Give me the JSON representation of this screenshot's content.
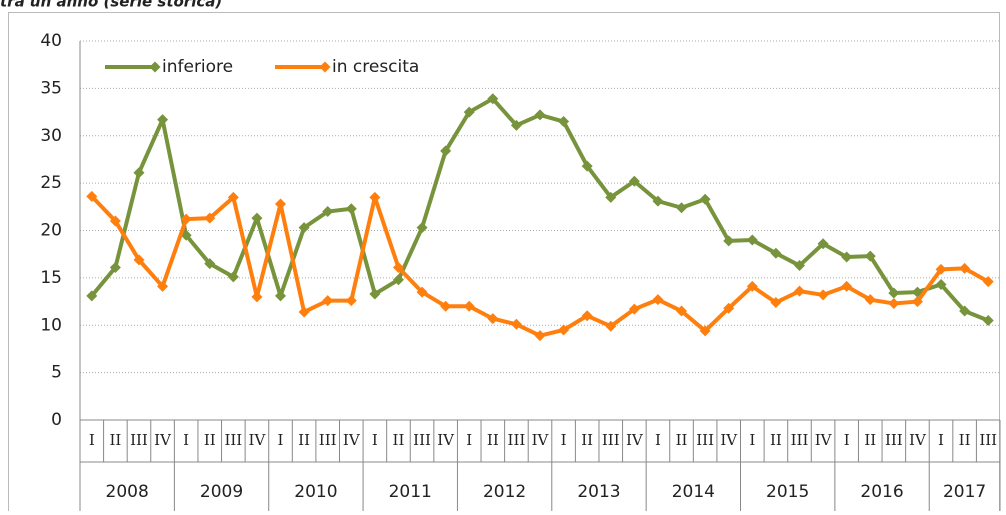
{
  "chart_data": {
    "type": "line",
    "title": "tra un anno (serie storica)",
    "categories": [
      "I",
      "II",
      "III",
      "IV",
      "I",
      "II",
      "III",
      "IV",
      "I",
      "II",
      "III",
      "IV",
      "I",
      "II",
      "III",
      "IV",
      "I",
      "II",
      "III",
      "IV",
      "I",
      "II",
      "III",
      "IV",
      "I",
      "II",
      "III",
      "IV",
      "I",
      "II",
      "III",
      "IV",
      "I",
      "II",
      "III",
      "IV",
      "I",
      "II",
      "III"
    ],
    "years": [
      "2008",
      "2009",
      "2010",
      "2011",
      "2012",
      "2013",
      "2014",
      "2015",
      "2016",
      "2017"
    ],
    "series": [
      {
        "name": "inferiore",
        "color": "#77933c",
        "values": [
          13.1,
          16.1,
          26.1,
          31.7,
          19.5,
          16.5,
          15.1,
          21.3,
          13.1,
          20.3,
          22.0,
          22.3,
          13.3,
          14.8,
          20.3,
          28.4,
          32.5,
          33.9,
          31.1,
          32.2,
          31.5,
          26.8,
          23.5,
          25.2,
          23.1,
          22.4,
          23.3,
          18.9,
          19.0,
          17.6,
          16.3,
          18.6,
          17.2,
          17.3,
          13.4,
          13.5,
          14.3,
          11.5,
          10.5
        ]
      },
      {
        "name": "in crescita",
        "color": "#ff7f0e",
        "values": [
          23.6,
          21.0,
          16.9,
          14.1,
          21.2,
          21.3,
          23.5,
          13.0,
          22.8,
          11.4,
          12.6,
          12.6,
          23.5,
          16.1,
          13.5,
          12.0,
          12.0,
          10.7,
          10.1,
          8.9,
          9.5,
          11.0,
          9.9,
          11.7,
          12.7,
          11.5,
          9.4,
          11.8,
          14.1,
          12.4,
          13.6,
          13.2,
          14.1,
          12.7,
          12.3,
          12.5,
          15.9,
          16.0,
          14.6
        ]
      }
    ],
    "ylim": [
      0,
      40
    ],
    "yticks": [
      0,
      5,
      10,
      15,
      20,
      25,
      30,
      35,
      40
    ],
    "grid": true,
    "legend": "upper left"
  }
}
